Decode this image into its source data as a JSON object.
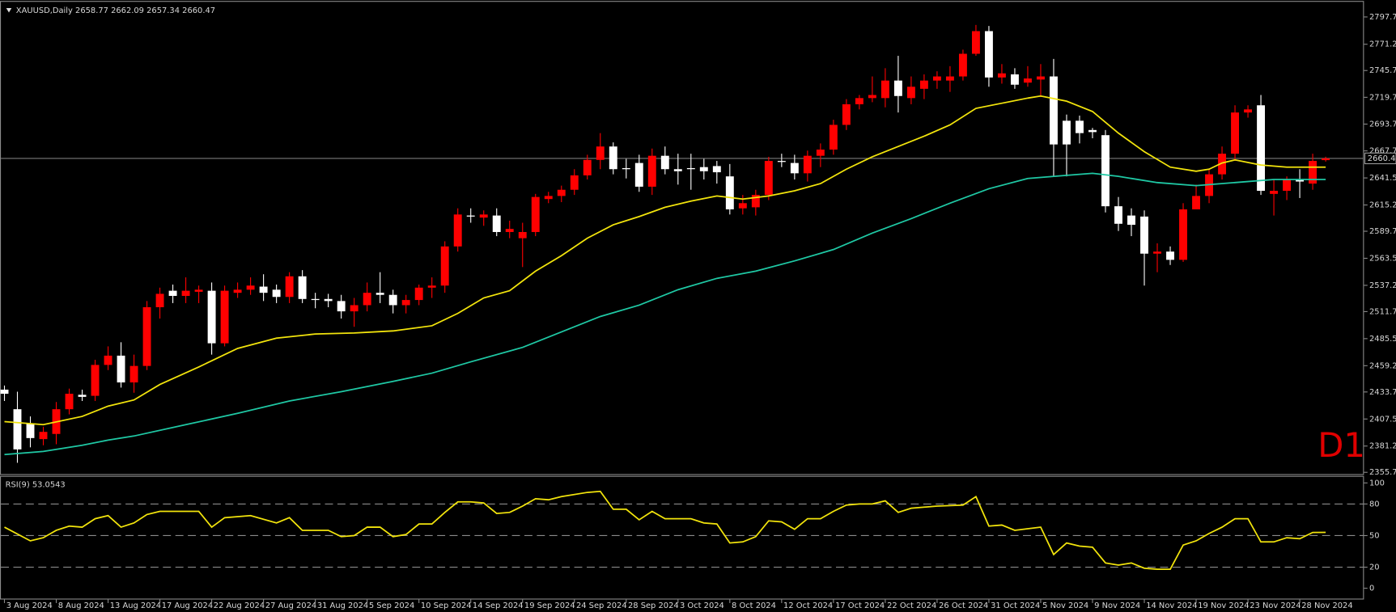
{
  "chart_data": {
    "type": "candlestick",
    "title": "XAUUSD,Daily 2658.77 2662.09 2657.34 2660.47",
    "watermark": "D1",
    "categories": [
      "3 Aug 2024",
      null,
      null,
      null,
      "8 Aug 2024",
      null,
      null,
      null,
      "13 Aug 2024",
      null,
      null,
      null,
      "17 Aug 2024",
      null,
      null,
      null,
      "22 Aug 2024",
      null,
      null,
      null,
      "27 Aug 2024",
      null,
      null,
      null,
      "31 Aug 2024",
      null,
      null,
      null,
      "5 Sep 2024",
      null,
      null,
      null,
      "10 Sep 2024",
      null,
      null,
      null,
      "14 Sep 2024",
      null,
      null,
      null,
      "19 Sep 2024",
      null,
      null,
      null,
      "24 Sep 2024",
      null,
      null,
      null,
      "28 Sep 2024",
      null,
      null,
      null,
      "3 Oct 2024",
      null,
      null,
      null,
      "8 Oct 2024",
      null,
      null,
      null,
      "12 Oct 2024",
      null,
      null,
      null,
      "17 Oct 2024",
      null,
      null,
      null,
      "22 Oct 2024",
      null,
      null,
      null,
      "26 Oct 2024",
      null,
      null,
      null,
      "31 Oct 2024",
      null,
      null,
      null,
      "5 Nov 2024",
      null,
      null,
      null,
      "9 Nov 2024",
      null,
      null,
      null,
      "14 Nov 2024",
      null,
      null,
      null,
      "19 Nov 2024",
      null,
      null,
      null,
      "23 Nov 2024",
      null,
      null,
      null,
      "28 Nov 2024",
      null,
      null
    ],
    "open": [
      2436,
      2417,
      2403,
      2388,
      2393,
      2417,
      2431,
      2430,
      2460,
      2469,
      2443,
      2459,
      2516,
      2532,
      2527,
      2531,
      2532,
      2481,
      2530,
      2533,
      2536,
      2533,
      2526,
      2546,
      2524,
      2524,
      2522,
      2512,
      2518,
      2530,
      2528,
      2518,
      2523,
      2535,
      2537,
      2575,
      2605,
      2603,
      2605,
      2589,
      2583,
      2589,
      2621,
      2624,
      2630,
      2644,
      2659,
      2672,
      2651,
      2656,
      2633,
      2663,
      2650,
      2651,
      2652,
      2653,
      2643,
      2612,
      2613,
      2625,
      2658,
      2656,
      2646,
      2663,
      2669,
      2693,
      2713,
      2719,
      2719,
      2736,
      2719,
      2728,
      2736,
      2736,
      2740,
      2762,
      2784,
      2739,
      2742,
      2734,
      2737,
      2740,
      2697,
      2697,
      2688,
      2683,
      2614,
      2605,
      2604,
      2568,
      2570,
      2562,
      2611,
      2624,
      2645,
      2665,
      2705,
      2712,
      2626,
      2629,
      2640,
      2636,
      2658.77
    ],
    "high": [
      2440,
      2434,
      2410,
      2400,
      2424,
      2437,
      2436,
      2465,
      2478,
      2482,
      2470,
      2522,
      2535,
      2538,
      2545,
      2537,
      2540,
      2537,
      2540,
      2545,
      2548,
      2538,
      2550,
      2552,
      2530,
      2529,
      2528,
      2525,
      2540,
      2550,
      2533,
      2528,
      2538,
      2545,
      2580,
      2612,
      2612,
      2610,
      2612,
      2600,
      2598,
      2626,
      2628,
      2634,
      2650,
      2664,
      2685,
      2676,
      2660,
      2664,
      2670,
      2672,
      2665,
      2665,
      2660,
      2658,
      2655,
      2625,
      2630,
      2662,
      2665,
      2664,
      2668,
      2675,
      2698,
      2718,
      2722,
      2740,
      2748,
      2760,
      2740,
      2742,
      2745,
      2750,
      2766,
      2790,
      2789,
      2752,
      2748,
      2750,
      2752,
      2757,
      2703,
      2702,
      2690,
      2688,
      2623,
      2612,
      2610,
      2578,
      2575,
      2617,
      2635,
      2650,
      2672,
      2712,
      2712,
      2722,
      2640,
      2643,
      2650,
      2665,
      2662.09
    ],
    "low": [
      2425,
      2365,
      2380,
      2382,
      2383,
      2412,
      2425,
      2425,
      2455,
      2438,
      2433,
      2455,
      2505,
      2520,
      2520,
      2520,
      2470,
      2478,
      2525,
      2528,
      2522,
      2520,
      2520,
      2520,
      2515,
      2516,
      2505,
      2497,
      2512,
      2520,
      2510,
      2510,
      2518,
      2525,
      2530,
      2570,
      2598,
      2595,
      2585,
      2583,
      2555,
      2585,
      2617,
      2618,
      2625,
      2640,
      2650,
      2645,
      2641,
      2628,
      2625,
      2645,
      2635,
      2630,
      2640,
      2636,
      2606,
      2606,
      2605,
      2620,
      2652,
      2640,
      2638,
      2652,
      2664,
      2688,
      2708,
      2715,
      2710,
      2705,
      2713,
      2718,
      2728,
      2725,
      2736,
      2760,
      2730,
      2733,
      2728,
      2730,
      2720,
      2643,
      2643,
      2675,
      2680,
      2608,
      2590,
      2585,
      2537,
      2550,
      2557,
      2560,
      2612,
      2617,
      2640,
      2658,
      2700,
      2625,
      2605,
      2620,
      2622,
      2630,
      2657.34
    ],
    "close": [
      2432,
      2378,
      2389,
      2395,
      2417,
      2432,
      2429,
      2460,
      2469,
      2443,
      2459,
      2516,
      2529,
      2527,
      2532,
      2533,
      2481,
      2532,
      2533,
      2537,
      2530,
      2526,
      2546,
      2524,
      2523,
      2522,
      2512,
      2518,
      2530,
      2528,
      2518,
      2523,
      2535,
      2537,
      2575,
      2606,
      2604,
      2606,
      2589,
      2592,
      2589,
      2623,
      2624,
      2630,
      2644,
      2659,
      2672,
      2650,
      2650,
      2633,
      2663,
      2650,
      2648,
      2650,
      2648,
      2647,
      2611,
      2617,
      2625,
      2658,
      2657,
      2646,
      2663,
      2669,
      2693,
      2713,
      2719,
      2722,
      2736,
      2721,
      2730,
      2736,
      2740,
      2740,
      2762,
      2784,
      2739,
      2743,
      2732,
      2738,
      2740,
      2674,
      2674,
      2685,
      2686,
      2614,
      2597,
      2596,
      2568,
      2570,
      2562,
      2611,
      2624,
      2645,
      2665,
      2705,
      2708,
      2629,
      2629,
      2640,
      2638,
      2658,
      2660.47
    ],
    "up_color": "#ff0000",
    "down_color": "#ffffff",
    "ylim": [
      2355.75,
      2807.25
    ],
    "yticks": [
      2355.75,
      2381.25,
      {
        "value": 2407.5,
        "label": "2407.50"
      },
      2433.75,
      2459.25,
      {
        "value": 2485.5,
        "label": "2485.50"
      },
      2511.75,
      2537.25,
      {
        "value": 2563.5,
        "label": "2563.50"
      },
      2589.75,
      2615.25,
      {
        "value": 2641.5,
        "label": "2641.50"
      },
      2667.75,
      2693.75,
      2719.75,
      2745.75,
      2771.25,
      2797.75
    ],
    "current_price": 2660.47,
    "series": [
      {
        "color": "#f2e40c",
        "x": [
          0,
          3,
          6,
          8,
          10,
          12,
          15,
          18,
          21,
          24,
          27,
          30,
          33,
          35,
          37,
          39,
          41,
          43,
          45,
          47,
          49,
          51,
          53,
          55,
          57,
          59,
          61,
          63,
          65,
          67,
          69,
          71,
          73,
          75,
          77,
          79,
          80,
          82,
          84,
          86,
          88,
          90,
          92,
          93,
          94,
          95,
          97,
          99,
          102
        ],
        "values": [
          2405,
          2402,
          2410,
          2420,
          2426,
          2441,
          2458,
          2476,
          2486,
          2490,
          2491,
          2493,
          2498,
          2510,
          2525,
          2532,
          2551,
          2566,
          2583,
          2596,
          2604,
          2613,
          2619,
          2624,
          2621,
          2624,
          2629,
          2636,
          2650,
          2662,
          2672,
          2682,
          2693,
          2709,
          2714,
          2719,
          2721,
          2716,
          2706,
          2685,
          2667,
          2652,
          2648,
          2650,
          2656,
          2659,
          2654,
          2652,
          2652
        ]
      },
      {
        "color": "#1fc8a4",
        "x": [
          0,
          3,
          6,
          8,
          10,
          14,
          18,
          22,
          26,
          30,
          33,
          36,
          40,
          43,
          46,
          49,
          52,
          55,
          58,
          61,
          64,
          67,
          70,
          73,
          76,
          79,
          82,
          84,
          86,
          89,
          92,
          95,
          98,
          102
        ],
        "values": [
          2373,
          2376,
          2382,
          2387,
          2391,
          2402,
          2413,
          2425,
          2434,
          2444,
          2452,
          2463,
          2477,
          2492,
          2507,
          2518,
          2533,
          2544,
          2551,
          2561,
          2572,
          2588,
          2602,
          2617,
          2631,
          2641,
          2644,
          2646,
          2643,
          2637,
          2634,
          2637,
          2640,
          2640
        ]
      }
    ],
    "indicator": {
      "type": "line",
      "title": "RSI(9) 53.0543",
      "color": "#f2e40c",
      "ylim": [
        -9,
        105
      ],
      "yticks": [
        0,
        20,
        50,
        80,
        100
      ],
      "levels": [
        20,
        50,
        80
      ],
      "x": [
        0,
        2,
        3,
        4,
        5,
        6,
        7,
        8,
        9,
        10,
        11,
        12,
        15,
        16,
        17,
        19,
        21,
        22,
        23,
        25,
        26,
        27,
        28,
        29,
        30,
        31,
        32,
        33,
        34,
        35,
        36,
        37,
        38,
        39,
        40,
        41,
        42,
        43,
        45,
        46,
        47,
        48,
        49,
        50,
        51,
        53,
        54,
        55,
        56,
        57,
        58,
        59,
        60,
        61,
        62,
        63,
        64,
        65,
        66,
        67,
        68,
        69,
        70,
        72,
        74,
        75,
        76,
        77,
        78,
        80,
        81,
        82,
        83,
        84,
        85,
        86,
        87,
        88,
        89,
        90,
        91,
        92,
        93,
        94,
        95,
        96,
        97,
        98,
        99,
        100,
        101,
        102
      ],
      "values": [
        58,
        45,
        48,
        55,
        59,
        58,
        66,
        69,
        58,
        62,
        70,
        73,
        73,
        58,
        67,
        69,
        62,
        67,
        55,
        55,
        49,
        50,
        58,
        58,
        49,
        51,
        61,
        61,
        72,
        82,
        82,
        81,
        71,
        72,
        78,
        85,
        84,
        87,
        91,
        92,
        75,
        75,
        65,
        73,
        66,
        66,
        62,
        61,
        43,
        44,
        49,
        64,
        63,
        56,
        66,
        66,
        73,
        79,
        80,
        80,
        83,
        72,
        76,
        78,
        79,
        87,
        59,
        60,
        55,
        58,
        32,
        43,
        40,
        39,
        24,
        22,
        24,
        19,
        18,
        18,
        41,
        45,
        52,
        58,
        66,
        66,
        44,
        44,
        48,
        47,
        53,
        53.0543
      ]
    }
  }
}
